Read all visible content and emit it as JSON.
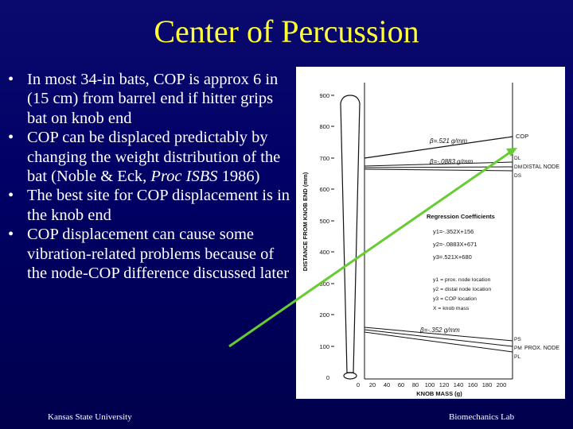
{
  "title": "Center of Percussion",
  "bullets": [
    {
      "text": "In most 34-in bats, COP is approx 6 in (15 cm) from barrel end if hitter grips bat on knob end"
    },
    {
      "text_before": "COP can be displaced predictably by changing the weight distribution of the bat (Noble & Eck, ",
      "italic": "Proc ISBS",
      "text_after": " 1986)"
    },
    {
      "text": "The best site for COP displacement is in the knob end"
    },
    {
      "text": "COP displacement can cause some vibration-related problems because of the node-COP difference discussed later"
    }
  ],
  "bullet_glyph": "•",
  "footer": {
    "left": "Kansas State University",
    "right": "Biomechanics Lab"
  },
  "colors": {
    "title": "#ffff33",
    "text": "#ffffff",
    "arrow": "#66cc33",
    "background": "#000066"
  },
  "figure": {
    "ylabel": "DISTANCE FROM KNOB END (mm)",
    "xlabel": "KNOB MASS (g)",
    "y_ticks": [
      "900",
      "800",
      "700",
      "600",
      "500",
      "400",
      "300",
      "200",
      "100",
      "0"
    ],
    "x_ticks": [
      "0",
      "20",
      "40",
      "60",
      "80",
      "100",
      "120",
      "140",
      "160",
      "180",
      "200"
    ],
    "line_labels": [
      "COP",
      "DISTAL NODE",
      "PROX. NODE"
    ],
    "sub_labels": [
      "DL",
      "DM",
      "DS",
      "PS",
      "PM",
      "PL"
    ],
    "slopes": {
      "cop": "β=.521 g/mm",
      "distal": "β=-.0883 g/mm",
      "prox": "β=-.352 g/mm"
    },
    "regression_title": "Regression Coefficients",
    "equations": [
      "y1=-.352X+156",
      "y2=-.0883X+671",
      "y3=.521X+680"
    ],
    "legend": [
      "y1 = prox. node location",
      "y2 = distal node location",
      "y3 = COP location",
      "X = knob mass"
    ]
  }
}
